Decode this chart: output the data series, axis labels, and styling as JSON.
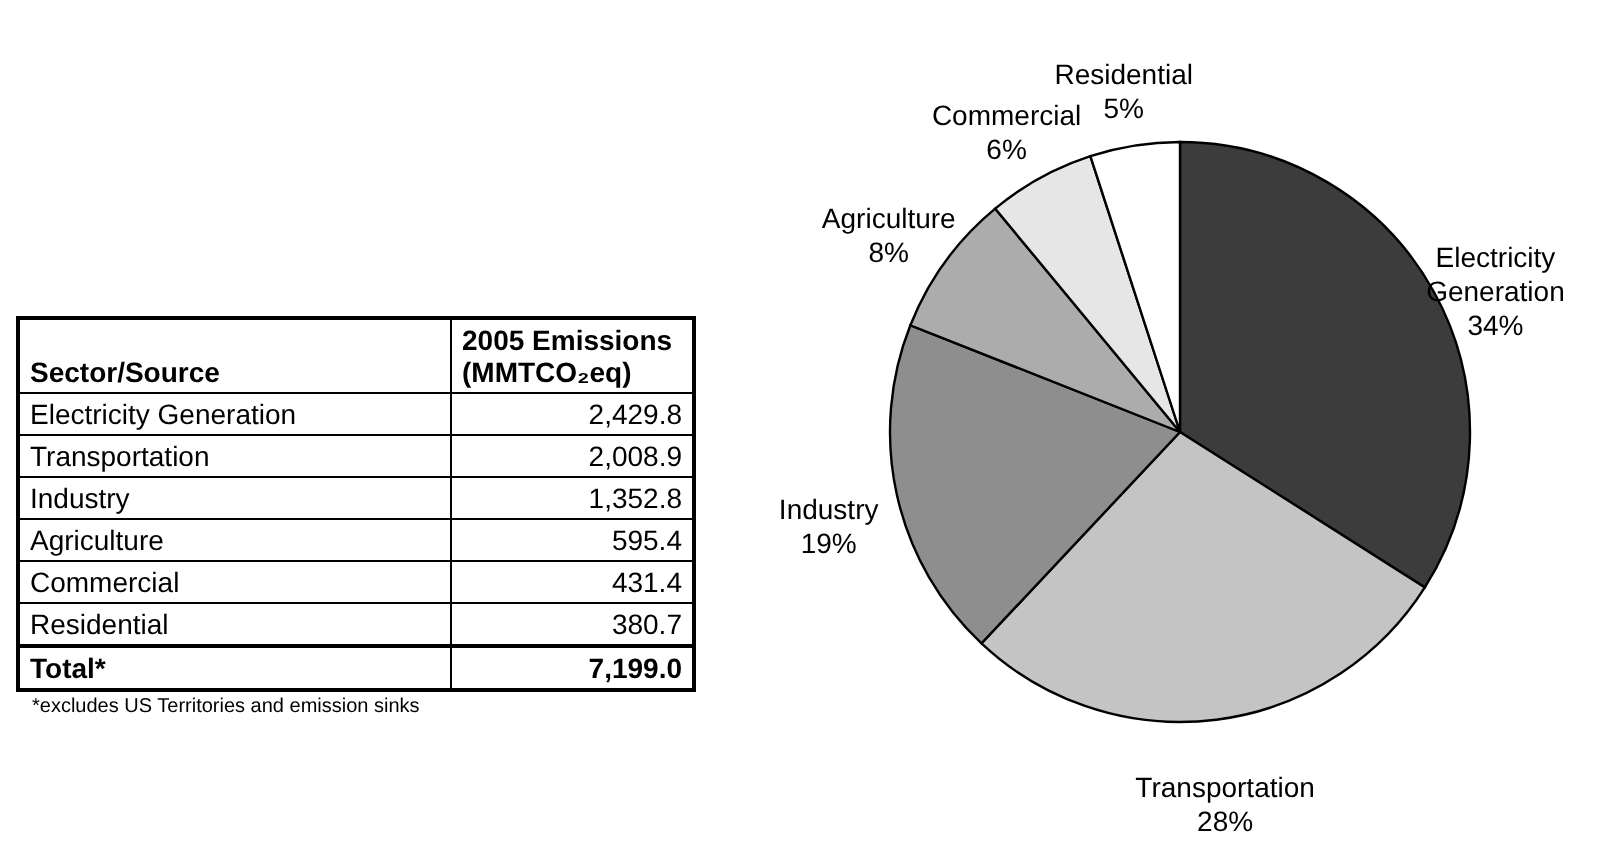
{
  "chart_data": [
    {
      "type": "other",
      "xlabel": "Sector/Source",
      "ylabel": "2005 Emissions (MMTCO₂eq)",
      "categories": [
        "Electricity Generation",
        "Transportation",
        "Industry",
        "Agriculture",
        "Commercial",
        "Residential"
      ],
      "values": [
        2429.8,
        2008.9,
        1352.8,
        595.4,
        431.4,
        380.7
      ],
      "value_labels": [
        "2,429.8",
        "2,008.9",
        "1,352.8",
        "595.4",
        "431.4",
        "380.7"
      ],
      "totals": [
        "7,199.0"
      ],
      "annotations": [
        "Total*",
        "*excludes US Territories and emission sinks"
      ]
    },
    {
      "type": "pie",
      "categories": [
        "Electricity Generation",
        "Transportation",
        "Industry",
        "Agriculture",
        "Commercial",
        "Residential"
      ],
      "values": [
        34,
        28,
        19,
        8,
        6,
        5
      ],
      "value_labels": [
        "34%",
        "28%",
        "19%",
        "8%",
        "6%",
        "5%"
      ],
      "colors": [
        "#3c3c3c",
        "#c4c4c4",
        "#8e8e8e",
        "#acacac",
        "#e6e6e6",
        "#ffffff"
      ]
    }
  ]
}
